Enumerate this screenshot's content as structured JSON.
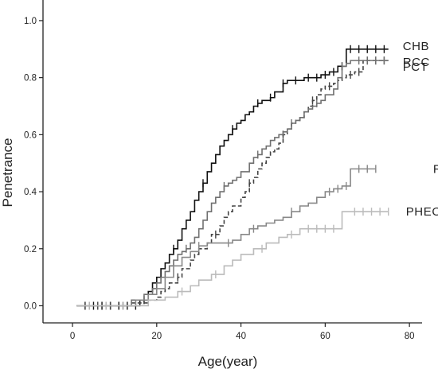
{
  "chart_data": {
    "type": "line",
    "step": true,
    "xlabel": "Age(year)",
    "ylabel": "Penetrance",
    "xlim": [
      -7,
      83
    ],
    "ylim": [
      -0.06,
      1.05
    ],
    "xticks": [
      0,
      20,
      40,
      60,
      80
    ],
    "yticks": [
      0.0,
      0.2,
      0.4,
      0.6,
      0.8,
      1.0
    ],
    "xtick_labels": [
      "0",
      "20",
      "40",
      "60",
      "80"
    ],
    "ytick_labels": [
      "0.0",
      "0.2",
      "0.4",
      "0.6",
      "0.8",
      "1.0"
    ],
    "grid": false,
    "censor_marker": "+",
    "series": [
      {
        "name": "CHB",
        "color": "#111111",
        "dash": "solid",
        "x": [
          1,
          16,
          18,
          19,
          20,
          21,
          22,
          23,
          24,
          25,
          26,
          27,
          28,
          29,
          30,
          31,
          32,
          33,
          34,
          35,
          36,
          37,
          38,
          39,
          40,
          41,
          42,
          43,
          44,
          45,
          46,
          47,
          48,
          50,
          51,
          53,
          55,
          57,
          59,
          61,
          63,
          65,
          75
        ],
        "y": [
          0.0,
          0.02,
          0.05,
          0.08,
          0.1,
          0.13,
          0.15,
          0.18,
          0.2,
          0.23,
          0.27,
          0.3,
          0.33,
          0.37,
          0.4,
          0.43,
          0.47,
          0.5,
          0.53,
          0.56,
          0.58,
          0.6,
          0.62,
          0.64,
          0.65,
          0.67,
          0.68,
          0.7,
          0.71,
          0.72,
          0.72,
          0.73,
          0.75,
          0.78,
          0.79,
          0.79,
          0.8,
          0.8,
          0.81,
          0.82,
          0.84,
          0.9,
          0.9
        ],
        "censored_x": [
          3,
          5,
          7,
          9,
          11,
          13,
          15,
          17,
          24,
          31,
          38,
          44,
          47,
          50,
          53,
          56,
          58,
          60,
          62,
          64,
          66,
          68,
          70,
          72,
          74
        ]
      },
      {
        "name": "RCC",
        "color": "#444444",
        "dash": "dashed",
        "x": [
          1,
          14,
          18,
          20,
          21,
          22,
          23,
          25,
          26,
          28,
          29,
          30,
          32,
          33,
          35,
          36,
          37,
          38,
          40,
          41,
          42,
          43,
          44,
          45,
          46,
          47,
          48,
          49,
          50,
          51,
          52,
          53,
          54,
          55,
          56,
          57,
          58,
          59,
          60,
          62,
          63,
          64,
          65,
          67,
          69,
          75
        ],
        "y": [
          0.0,
          0.01,
          0.02,
          0.03,
          0.05,
          0.06,
          0.08,
          0.1,
          0.13,
          0.16,
          0.18,
          0.2,
          0.22,
          0.25,
          0.28,
          0.31,
          0.33,
          0.35,
          0.38,
          0.4,
          0.43,
          0.45,
          0.48,
          0.5,
          0.52,
          0.54,
          0.55,
          0.57,
          0.6,
          0.62,
          0.64,
          0.65,
          0.66,
          0.68,
          0.7,
          0.72,
          0.74,
          0.76,
          0.77,
          0.78,
          0.79,
          0.8,
          0.81,
          0.82,
          0.86,
          0.86
        ],
        "censored_x": [
          3,
          6,
          9,
          12,
          25,
          34,
          42,
          50,
          57,
          61,
          66,
          68,
          70,
          72,
          74
        ]
      },
      {
        "name": "PCT",
        "color": "#707070",
        "dash": "solid",
        "x": [
          1,
          14,
          17,
          19,
          20,
          21,
          22,
          23,
          24,
          25,
          26,
          27,
          28,
          29,
          30,
          31,
          32,
          33,
          34,
          35,
          36,
          37,
          38,
          39,
          40,
          42,
          43,
          44,
          45,
          46,
          47,
          48,
          49,
          50,
          51,
          52,
          53,
          54,
          55,
          56,
          57,
          58,
          59,
          60,
          62,
          63,
          64,
          65,
          66,
          67,
          75
        ],
        "y": [
          0.0,
          0.02,
          0.04,
          0.06,
          0.08,
          0.1,
          0.12,
          0.14,
          0.16,
          0.18,
          0.19,
          0.2,
          0.22,
          0.24,
          0.27,
          0.3,
          0.33,
          0.36,
          0.38,
          0.4,
          0.42,
          0.43,
          0.44,
          0.45,
          0.47,
          0.5,
          0.52,
          0.53,
          0.55,
          0.56,
          0.58,
          0.59,
          0.6,
          0.61,
          0.62,
          0.64,
          0.65,
          0.66,
          0.68,
          0.69,
          0.7,
          0.71,
          0.72,
          0.74,
          0.76,
          0.8,
          0.84,
          0.85,
          0.86,
          0.86,
          0.86
        ],
        "censored_x": [
          4,
          8,
          12,
          27,
          36,
          44,
          52,
          58,
          64,
          68,
          70,
          72,
          74
        ]
      },
      {
        "name": "RA",
        "color": "#888888",
        "dash": "solid",
        "x": [
          1,
          15,
          18,
          20,
          22,
          24,
          26,
          28,
          30,
          32,
          34,
          36,
          38,
          40,
          42,
          44,
          46,
          48,
          50,
          52,
          54,
          56,
          58,
          60,
          62,
          64,
          66,
          72
        ],
        "y": [
          0.0,
          0.02,
          0.04,
          0.06,
          0.1,
          0.14,
          0.17,
          0.19,
          0.21,
          0.22,
          0.22,
          0.22,
          0.23,
          0.25,
          0.27,
          0.28,
          0.29,
          0.3,
          0.31,
          0.33,
          0.35,
          0.36,
          0.38,
          0.4,
          0.41,
          0.42,
          0.48,
          0.48
        ],
        "censored_x": [
          4,
          8,
          12,
          30,
          37,
          43,
          52,
          61,
          63,
          65,
          68,
          70,
          72
        ]
      },
      {
        "name": "PHEO",
        "color": "#bbbbbb",
        "dash": "solid",
        "x": [
          1,
          18,
          22,
          25,
          28,
          30,
          33,
          36,
          38,
          40,
          43,
          46,
          49,
          51,
          54,
          57,
          60,
          64,
          65,
          75
        ],
        "y": [
          0.0,
          0.02,
          0.03,
          0.05,
          0.07,
          0.09,
          0.11,
          0.14,
          0.16,
          0.18,
          0.2,
          0.22,
          0.24,
          0.25,
          0.27,
          0.27,
          0.27,
          0.33,
          0.33,
          0.33
        ],
        "censored_x": [
          4,
          8,
          12,
          26,
          34,
          45,
          52,
          56,
          58,
          60,
          62,
          67,
          69,
          71,
          73,
          75
        ]
      }
    ]
  }
}
